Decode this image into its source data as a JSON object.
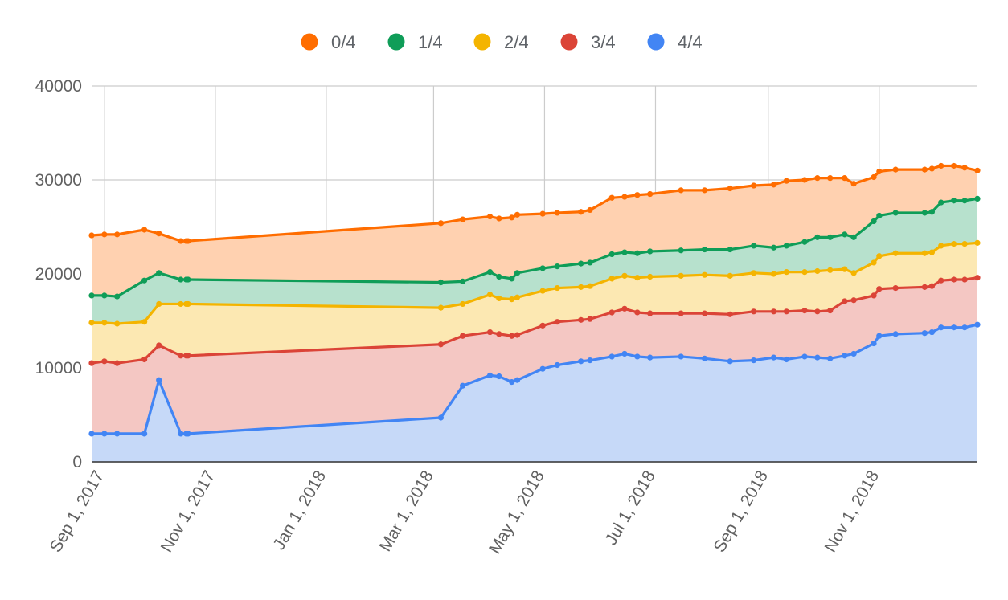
{
  "chart_data": {
    "type": "area",
    "stacked": true,
    "x_type": "date",
    "legend_position": "top",
    "grid": true,
    "ylim": [
      0,
      40000
    ],
    "xlim": [
      "2017-08-25",
      "2018-12-25"
    ],
    "y_ticks": [
      "0",
      "10000",
      "20000",
      "30000",
      "40000"
    ],
    "y_tick_values": [
      0,
      10000,
      20000,
      30000,
      40000
    ],
    "x_ticks": [
      "Sep 1, 2017",
      "Nov 1, 2017",
      "Jan 1, 2018",
      "Mar 1, 2018",
      "May 1, 2018",
      "Jul 1, 2018",
      "Sep 1, 2018",
      "Nov 1, 2018"
    ],
    "x_tick_dates": [
      "2017-09-01",
      "2017-11-01",
      "2018-01-01",
      "2018-03-01",
      "2018-05-01",
      "2018-07-01",
      "2018-09-01",
      "2018-11-01"
    ],
    "x": [
      "2017-08-25",
      "2017-09-01",
      "2017-09-08",
      "2017-09-23",
      "2017-10-01",
      "2017-10-13",
      "2017-10-16",
      "2017-10-17",
      "2018-03-05",
      "2018-03-17",
      "2018-04-01",
      "2018-04-06",
      "2018-04-13",
      "2018-04-16",
      "2018-04-30",
      "2018-05-08",
      "2018-05-21",
      "2018-05-26",
      "2018-06-07",
      "2018-06-14",
      "2018-06-21",
      "2018-06-28",
      "2018-07-15",
      "2018-07-28",
      "2018-08-11",
      "2018-08-24",
      "2018-09-04",
      "2018-09-11",
      "2018-09-21",
      "2018-09-28",
      "2018-10-05",
      "2018-10-13",
      "2018-10-18",
      "2018-10-29",
      "2018-11-01",
      "2018-11-10",
      "2018-11-26",
      "2018-11-30",
      "2018-12-05",
      "2018-12-12",
      "2018-12-18",
      "2018-12-25"
    ],
    "series": [
      {
        "name": "4/4",
        "color": "#4285f4",
        "fill": "#c6d9f8",
        "values": [
          3000,
          3000,
          3000,
          3000,
          8700,
          3000,
          3000,
          3000,
          4700,
          8100,
          9200,
          9100,
          8500,
          8700,
          9900,
          10300,
          10700,
          10800,
          11200,
          11500,
          11200,
          11100,
          11200,
          11000,
          10700,
          10800,
          11100,
          10900,
          11200,
          11100,
          11000,
          11300,
          11500,
          12600,
          13400,
          13600,
          13700,
          13800,
          14300,
          14300,
          14300,
          14600
        ]
      },
      {
        "name": "3/4",
        "color": "#db4437",
        "fill": "#f4c7c3",
        "values": [
          7500,
          7700,
          7500,
          7900,
          3700,
          8300,
          8300,
          8300,
          7800,
          5300,
          4600,
          4500,
          4900,
          4800,
          4600,
          4600,
          4400,
          4400,
          4700,
          4800,
          4700,
          4700,
          4600,
          4800,
          5000,
          5200,
          4900,
          5100,
          4900,
          4900,
          5100,
          5800,
          5700,
          5100,
          5000,
          4900,
          4900,
          4900,
          5000,
          5100,
          5100,
          5000
        ]
      },
      {
        "name": "2/4",
        "color": "#f4b400",
        "fill": "#fce8b2",
        "values": [
          4300,
          4100,
          4200,
          4000,
          4400,
          5500,
          5500,
          5500,
          3900,
          3400,
          4000,
          3800,
          3900,
          4000,
          3700,
          3600,
          3500,
          3500,
          3600,
          3500,
          3700,
          3900,
          4000,
          4100,
          4100,
          4100,
          4000,
          4200,
          4100,
          4300,
          4300,
          3400,
          2900,
          3500,
          3500,
          3700,
          3600,
          3600,
          3700,
          3800,
          3800,
          3700
        ]
      },
      {
        "name": "1/4",
        "color": "#0f9d58",
        "fill": "#b7e1cd",
        "values": [
          2900,
          2900,
          2900,
          4400,
          3300,
          2600,
          2600,
          2600,
          2700,
          2400,
          2400,
          2300,
          2200,
          2600,
          2400,
          2300,
          2500,
          2500,
          2600,
          2500,
          2600,
          2700,
          2700,
          2700,
          2800,
          2900,
          2800,
          2800,
          3200,
          3600,
          3500,
          3700,
          3800,
          4400,
          4300,
          4300,
          4300,
          4300,
          4600,
          4600,
          4600,
          4700
        ]
      },
      {
        "name": "0/4",
        "color": "#ff6d00",
        "fill": "#ffd1b0",
        "values": [
          6400,
          6500,
          6600,
          5400,
          4200,
          4100,
          4100,
          4100,
          6300,
          6600,
          5900,
          6200,
          6500,
          6200,
          5800,
          5700,
          5500,
          5600,
          6000,
          5900,
          6200,
          6100,
          6400,
          6300,
          6500,
          6400,
          6700,
          6900,
          6600,
          6300,
          6300,
          6000,
          5700,
          4700,
          4700,
          4600,
          4600,
          4600,
          3900,
          3700,
          3500,
          3000
        ]
      }
    ]
  }
}
